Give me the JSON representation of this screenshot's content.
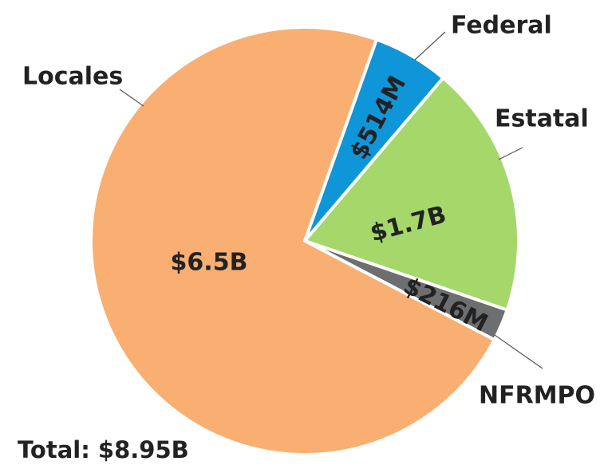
{
  "chart_data": {
    "type": "pie",
    "categories": [
      "Federal",
      "Estatal",
      "NFRMPO",
      "Locales"
    ],
    "values": [
      514000000,
      1700000000,
      216000000,
      6500000000
    ],
    "value_labels": [
      "$514M",
      "$1.7B",
      "$216M",
      "$6.5B"
    ],
    "colors": [
      "#0f96d9",
      "#a5d76a",
      "#6d6e70",
      "#f9ae72"
    ],
    "annotation": "Total: $8.95B"
  }
}
